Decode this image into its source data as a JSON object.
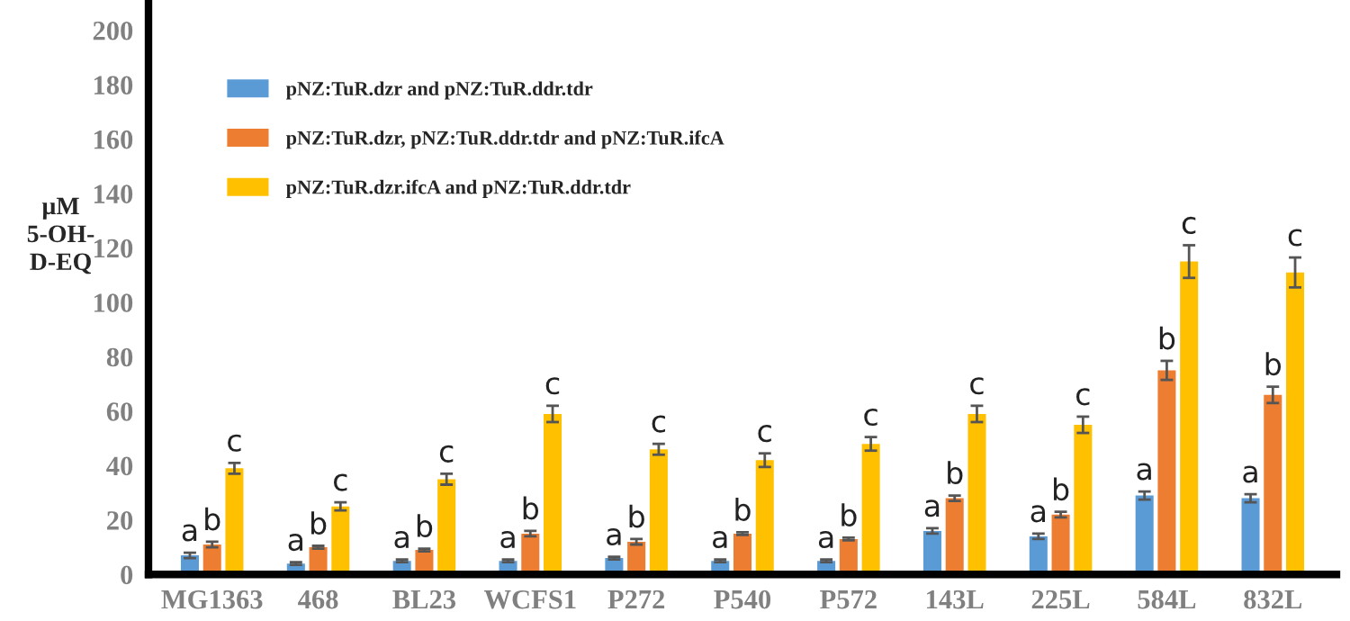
{
  "chart_data": {
    "type": "bar",
    "ylabel": "µM\n5-OH-\nD-EQ",
    "categories": [
      "MG1363",
      "468",
      "BL23",
      "WCFS1",
      "P272",
      "P540",
      "P572",
      "143L",
      "225L",
      "584L",
      "832L"
    ],
    "series": [
      {
        "name": "pNZ:TuR.dzr and pNZ:TuR.ddr.tdr",
        "color": "#5b9bd5",
        "values": [
          7,
          4,
          5,
          5,
          6,
          5,
          5,
          16,
          14,
          29,
          28
        ],
        "errors": [
          1,
          0.5,
          0.5,
          0.5,
          0.5,
          0.5,
          0.5,
          1,
          1,
          1.5,
          1.5
        ],
        "value_labels": [
          "a",
          "a",
          "a",
          "a",
          "a",
          "a",
          "a",
          "a",
          "a",
          "a",
          "a"
        ]
      },
      {
        "name": "pNZ:TuR.dzr, pNZ:TuR.ddr.tdr and pNZ:TuR.ifcA",
        "color": "#ed7d31",
        "values": [
          11,
          10,
          9,
          15,
          12,
          15,
          13,
          28,
          22,
          75,
          66
        ],
        "errors": [
          1,
          0.5,
          0.5,
          1,
          1,
          0.5,
          0.5,
          1,
          1,
          3.5,
          3
        ],
        "value_labels": [
          "b",
          "b",
          "b",
          "b",
          "b",
          "b",
          "b",
          "b",
          "b",
          "b",
          "b"
        ]
      },
      {
        "name": "pNZ:TuR.dzr.ifcA and pNZ:TuR.ddr.tdr",
        "color": "#ffc000",
        "values": [
          39,
          25,
          35,
          59,
          46,
          42,
          48,
          59,
          55,
          115,
          111
        ],
        "errors": [
          2,
          1.5,
          2,
          3,
          2,
          2.5,
          2.5,
          3,
          3,
          6,
          5.5
        ],
        "value_labels": [
          "c",
          "c",
          "c",
          "c",
          "c",
          "c",
          "c",
          "c",
          "c",
          "c",
          "c"
        ]
      }
    ],
    "ylim": [
      0,
      210
    ],
    "yticks": [
      0,
      20,
      40,
      60,
      80,
      100,
      120,
      140,
      160,
      180,
      200
    ],
    "grid": false,
    "legend": "top left"
  }
}
